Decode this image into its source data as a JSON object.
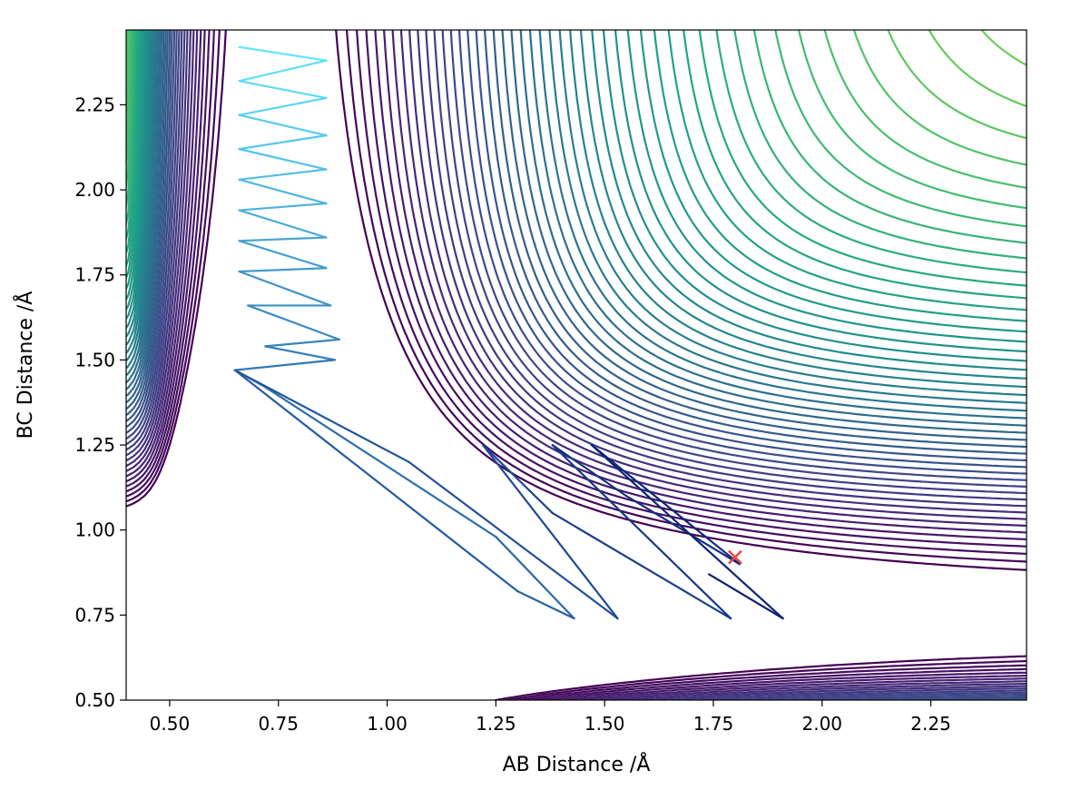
{
  "chart_data": {
    "type": "contour",
    "title": "",
    "xlabel": "AB Distance /Å",
    "ylabel": "BC Distance /Å",
    "xlim": [
      0.4,
      2.47
    ],
    "ylim": [
      0.5,
      2.47
    ],
    "x_ticks": [
      0.5,
      0.75,
      1.0,
      1.25,
      1.5,
      1.75,
      2.0,
      2.25
    ],
    "x_tick_labels": [
      "0.50",
      "0.75",
      "1.00",
      "1.25",
      "1.50",
      "1.75",
      "2.00",
      "2.25"
    ],
    "y_ticks": [
      0.5,
      0.75,
      1.0,
      1.25,
      1.5,
      1.75,
      2.0,
      2.25
    ],
    "y_tick_labels": [
      "0.50",
      "0.75",
      "1.00",
      "1.25",
      "1.50",
      "1.75",
      "2.00",
      "2.25"
    ],
    "grid": false,
    "legend": "none",
    "colormap_contours": "viridis",
    "contour_levels": {
      "count": 60,
      "min_colour": "#440154",
      "max_colour": "#fde725"
    },
    "trajectory": {
      "colormap": "cool-blue",
      "colour_start": "#63e5ff",
      "colour_end": "#0b1e73",
      "points": [
        [
          0.66,
          2.42
        ],
        [
          0.86,
          2.38
        ],
        [
          0.66,
          2.32
        ],
        [
          0.86,
          2.27
        ],
        [
          0.66,
          2.22
        ],
        [
          0.86,
          2.16
        ],
        [
          0.66,
          2.12
        ],
        [
          0.86,
          2.06
        ],
        [
          0.66,
          2.03
        ],
        [
          0.86,
          1.96
        ],
        [
          0.66,
          1.94
        ],
        [
          0.86,
          1.86
        ],
        [
          0.66,
          1.85
        ],
        [
          0.86,
          1.77
        ],
        [
          0.66,
          1.76
        ],
        [
          0.87,
          1.66
        ],
        [
          0.68,
          1.66
        ],
        [
          0.89,
          1.56
        ],
        [
          0.72,
          1.54
        ],
        [
          0.88,
          1.5
        ],
        [
          0.65,
          1.47
        ],
        [
          0.72,
          1.42
        ],
        [
          1.25,
          0.98
        ],
        [
          1.43,
          0.74
        ],
        [
          1.3,
          0.82
        ],
        [
          0.65,
          1.47
        ],
        [
          1.05,
          1.2
        ],
        [
          1.53,
          0.74
        ],
        [
          1.22,
          1.25
        ],
        [
          1.38,
          1.05
        ],
        [
          1.79,
          0.74
        ],
        [
          1.38,
          1.25
        ],
        [
          1.55,
          1.1
        ],
        [
          1.81,
          0.9
        ],
        [
          1.47,
          1.25
        ],
        [
          1.91,
          0.74
        ],
        [
          1.74,
          0.87
        ]
      ]
    },
    "marker": {
      "x": 1.8,
      "y": 0.92,
      "symbol": "x",
      "colour": "#e8473c"
    }
  }
}
